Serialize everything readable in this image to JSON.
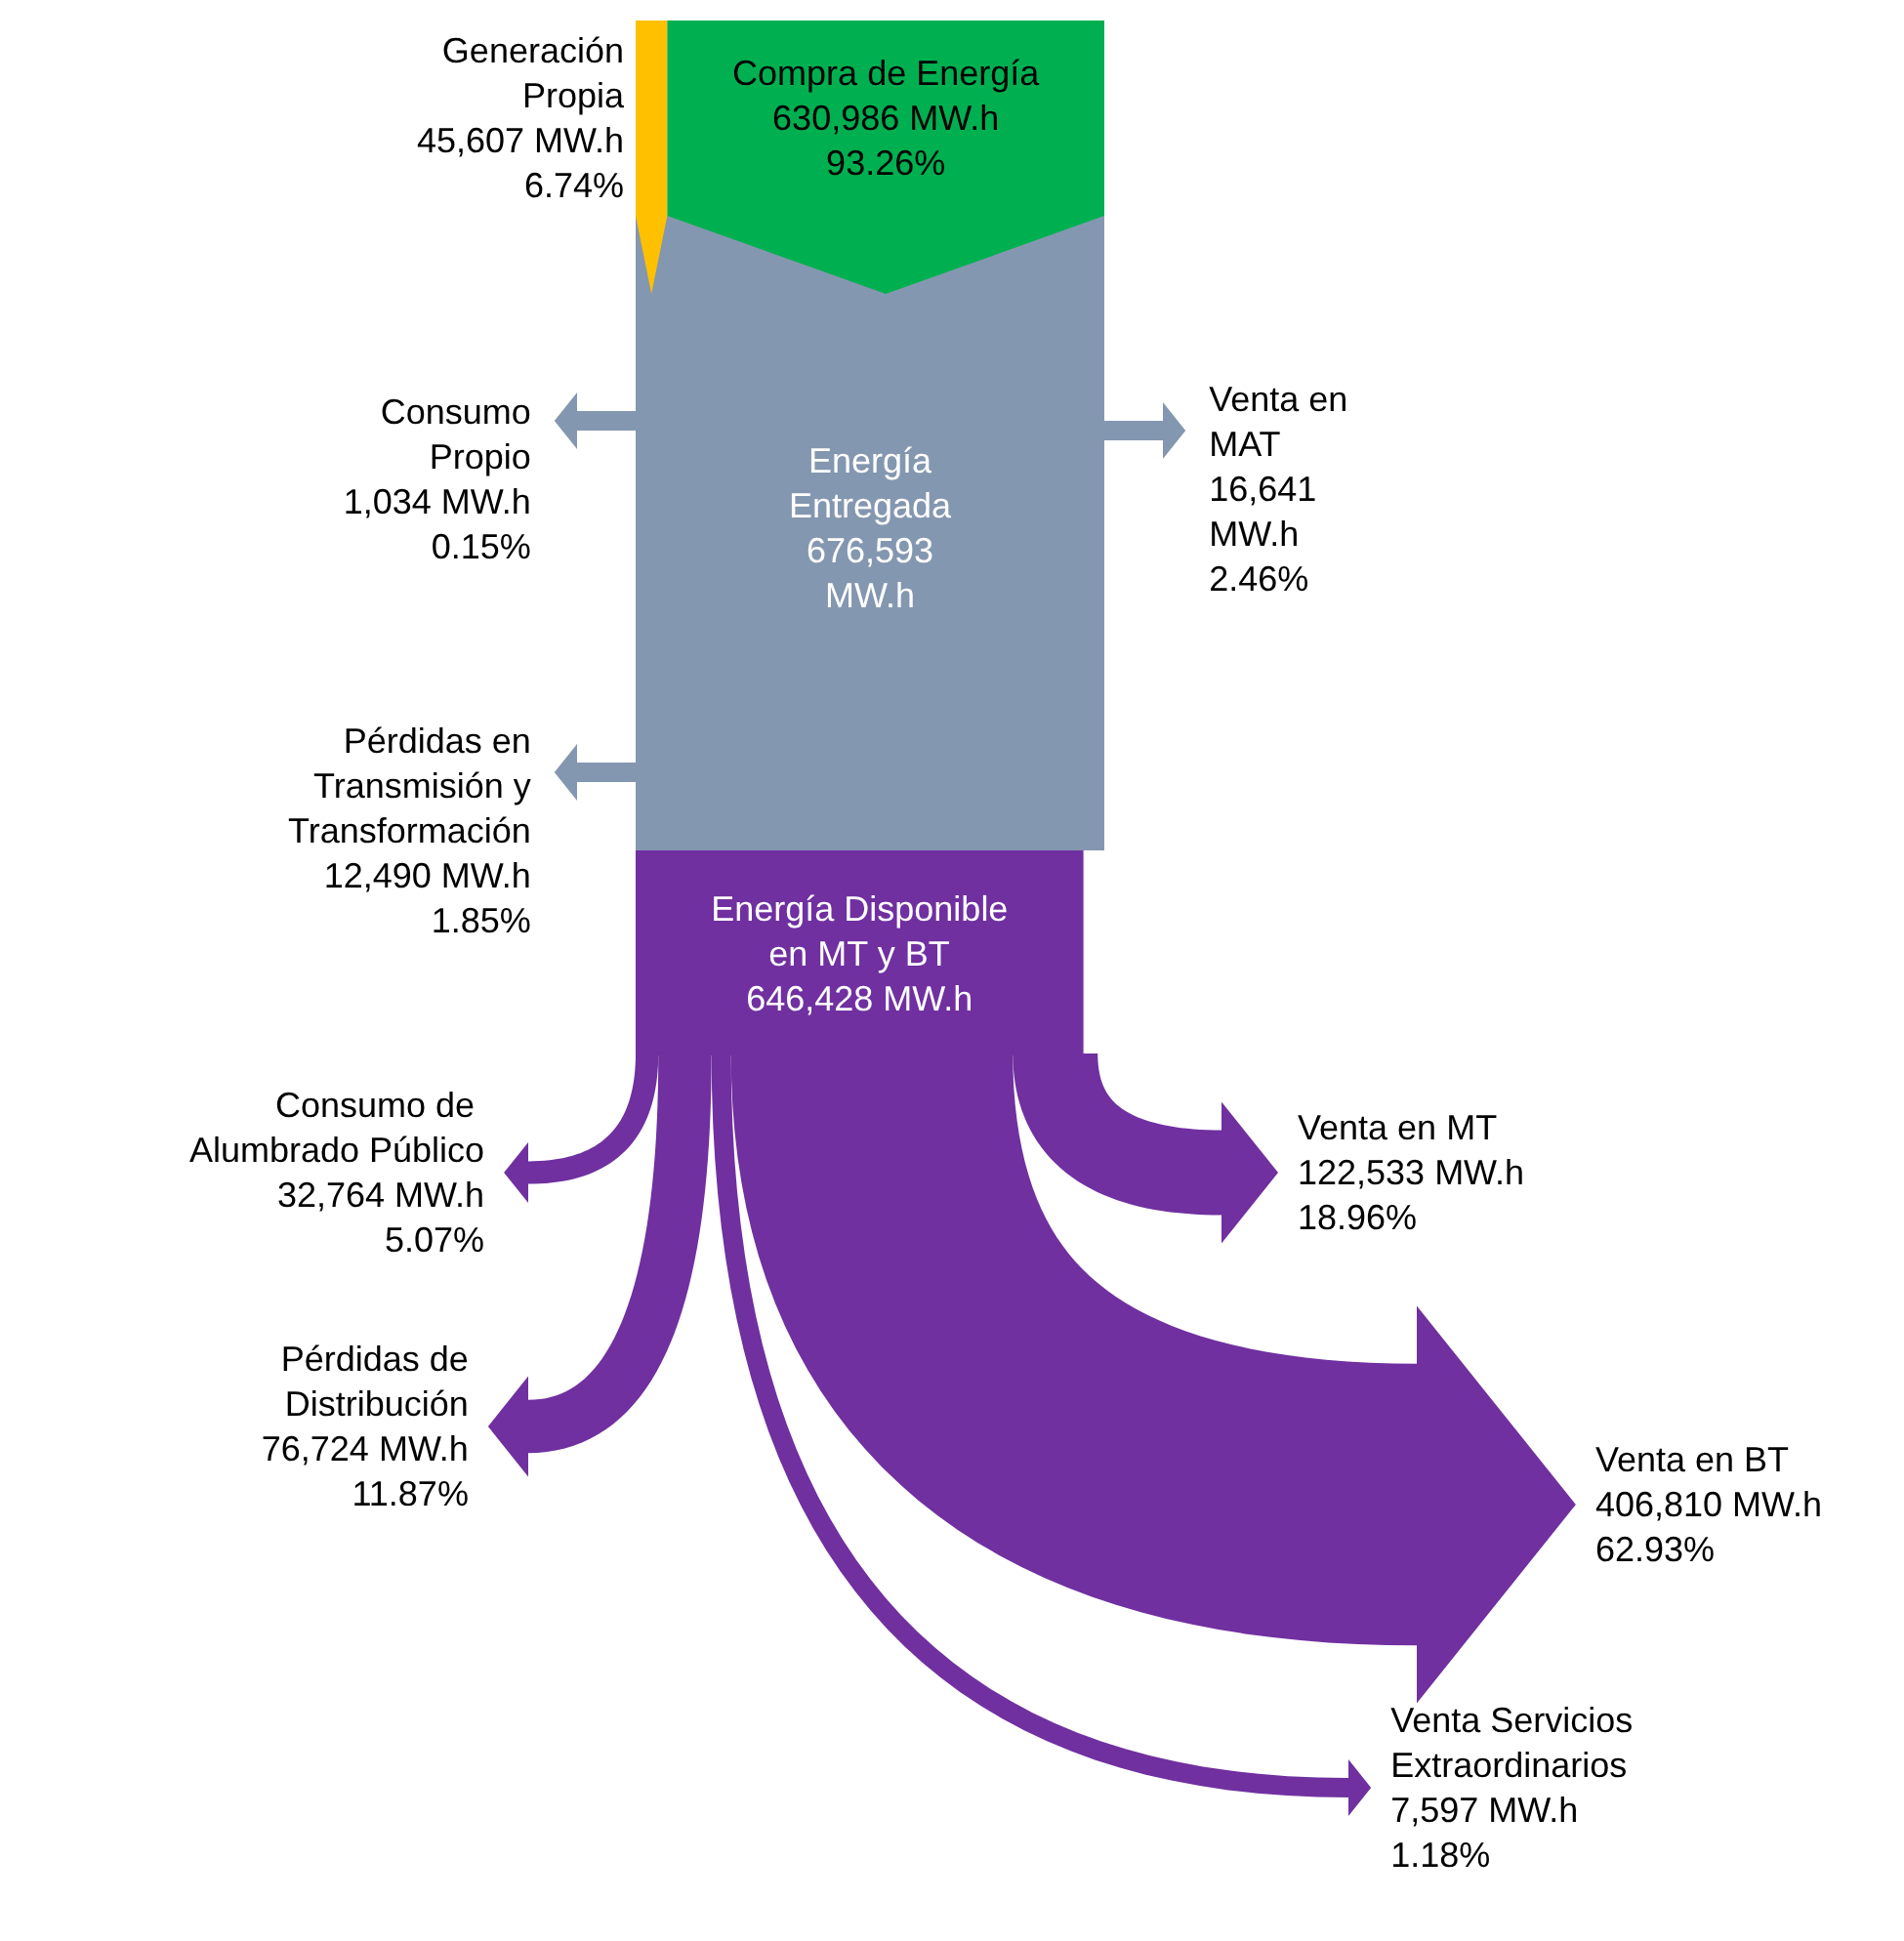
{
  "chart_data": {
    "type": "other",
    "categories": [
      "Generación\nPropia",
      "Compra de Energía",
      "Energía\nEntregada",
      "Consumo\nPropio",
      "Pérdidas en\nTransmisión y\nTransformación",
      "Venta en\nMAT",
      "Energía Disponible\nen MT y BT",
      "Consumo  de\nAlumbrado Público",
      "Pérdidas de\nDistribución",
      "Venta Servicios\nExtraordinarios",
      "Venta en BT",
      "Venta en MT"
    ],
    "values": [
      45607,
      630986,
      676593,
      1034,
      12490,
      16641,
      646428,
      32764,
      76724,
      7597,
      406810,
      122533
    ],
    "value_labels": [
      "45,607 MW.h\n6.74%",
      "630,986 MW.h\n93.26%",
      "676,593\nMW.h",
      "1,034 MW.h\n0.15%",
      "12,490 MW.h\n1.85%",
      "16,641\nMW.h\n2.46%",
      "646,428 MW.h",
      "32,764 MW.h\n5.07%",
      "76,724 MW.h\n11.87%",
      "7,597 MW.h\n1.18%",
      "406,810 MW.h\n62.93%",
      "122,533 MW.h\n18.96%"
    ],
    "colors": [
      "#ffc000",
      "#00b050",
      "#8497b0",
      "#8497b0",
      "#8497b0",
      "#8497b0",
      "#7030a0",
      "#7030a0",
      "#7030a0",
      "#7030a0",
      "#7030a0",
      "#7030a0"
    ]
  }
}
